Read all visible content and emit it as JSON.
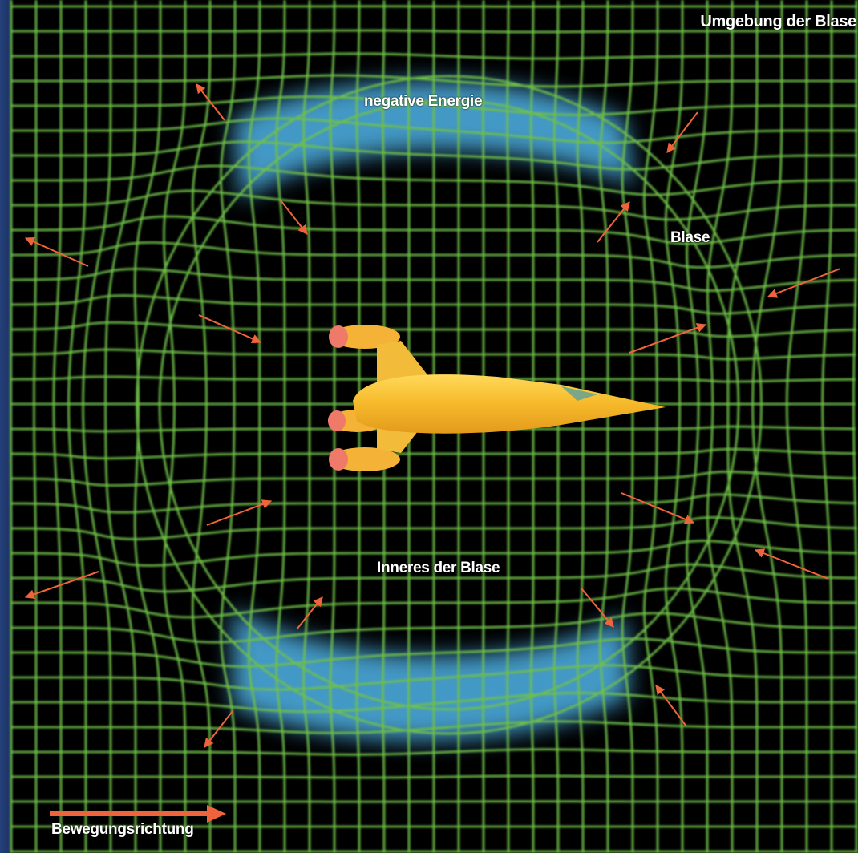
{
  "labels": {
    "surroundings": "Umgebung der Blase",
    "negative_energy": "negative Energie",
    "bubble": "Blase",
    "interior": "Inneres der Blase",
    "direction_of_motion": "Bewegungsrichtung"
  },
  "colors": {
    "grid": "#6fc04a",
    "negative_energy": "#4fb4e8",
    "arrow": "#f0643c",
    "ship_body": "#f6c43a",
    "ship_engines": "#f07a6a",
    "background": "#000000"
  },
  "icons": {
    "ship": "spaceship-icon",
    "direction": "arrow-right-icon"
  }
}
